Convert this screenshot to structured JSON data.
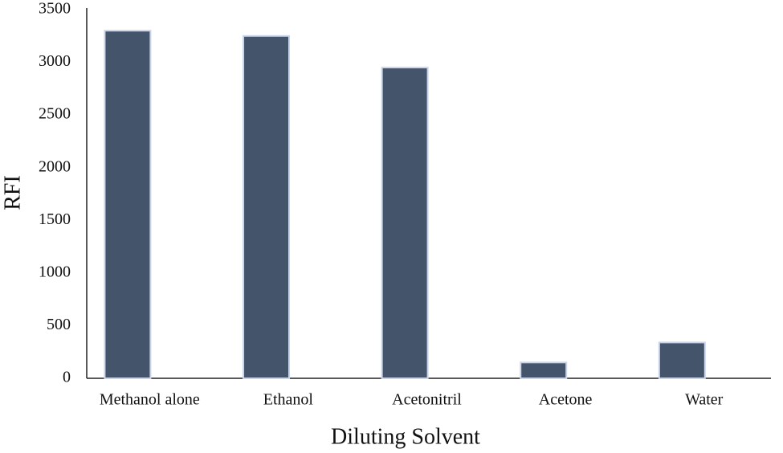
{
  "chart_data": {
    "type": "bar",
    "x_label": "Diluting Solvent",
    "y_label": "RFI",
    "categories": [
      "Methanol alone",
      "Ethanol",
      "Acetonitril",
      "Acetone",
      "Water"
    ],
    "values": [
      3300,
      3250,
      2950,
      150,
      340
    ],
    "color": "#44546a",
    "edge_color": "#c9d4ea",
    "ylim": [
      0,
      3500
    ],
    "yticks": [
      0,
      500,
      1000,
      1500,
      2000,
      2500,
      3000,
      3500
    ],
    "grid": false
  }
}
